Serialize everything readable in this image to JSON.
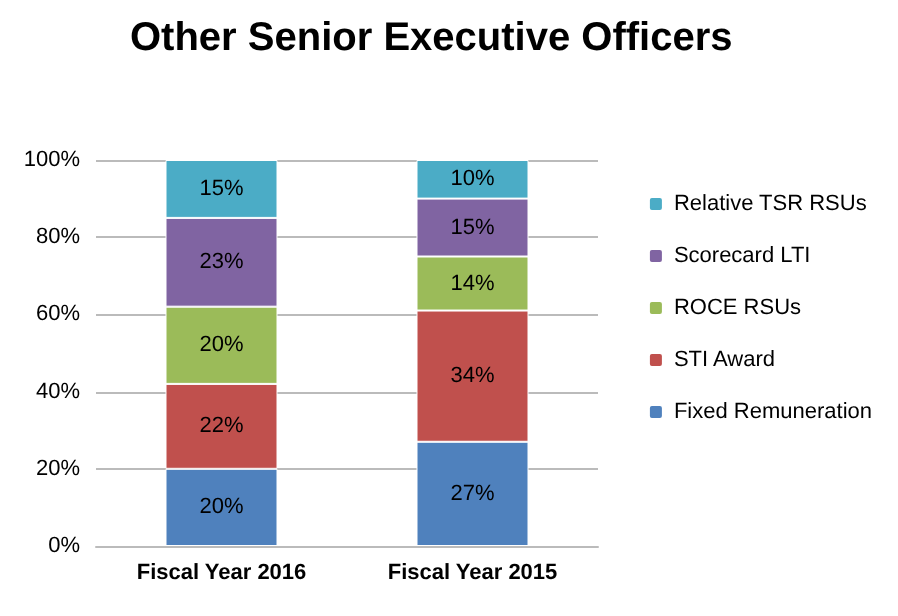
{
  "chart_data": {
    "type": "bar",
    "title": "Other Senior Executive Officers",
    "categories": [
      "Fiscal Year 2016",
      "Fiscal Year 2015"
    ],
    "stacked": true,
    "series": [
      {
        "name": "Fixed Remuneration",
        "color": "#4f81bd",
        "values": [
          20,
          27
        ],
        "value_labels": [
          "20%",
          "27%"
        ]
      },
      {
        "name": "STI Award",
        "color": "#c0504d",
        "values": [
          22,
          34
        ],
        "value_labels": [
          "22%",
          "34%"
        ]
      },
      {
        "name": "ROCE RSUs",
        "color": "#9bbb59",
        "values": [
          20,
          14
        ],
        "value_labels": [
          "20%",
          "14%"
        ]
      },
      {
        "name": "Scorecard LTI",
        "color": "#8064a2",
        "values": [
          23,
          15
        ],
        "value_labels": [
          "23%",
          "15%"
        ]
      },
      {
        "name": "Relative TSR RSUs",
        "color": "#4bacc6",
        "values": [
          15,
          10
        ],
        "value_labels": [
          "15%",
          "10%"
        ]
      }
    ],
    "ylim": [
      0,
      100
    ],
    "yticks": [
      {
        "value": 0,
        "label": "0%"
      },
      {
        "value": 20,
        "label": "20%"
      },
      {
        "value": 40,
        "label": "40%"
      },
      {
        "value": 60,
        "label": "60%"
      },
      {
        "value": 80,
        "label": "80%"
      },
      {
        "value": 100,
        "label": "100%"
      }
    ],
    "grid": "y",
    "legend": "right"
  }
}
